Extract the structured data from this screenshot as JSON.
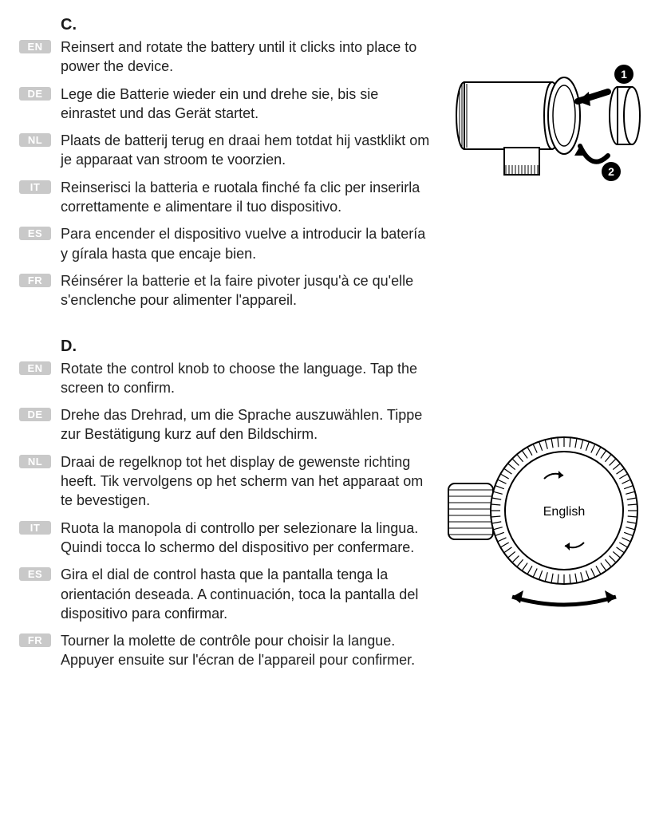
{
  "sections": {
    "c": {
      "letter": "C.",
      "blocks": [
        {
          "tag": "EN",
          "text": "Reinsert and rotate the battery until it clicks into place to power the device."
        },
        {
          "tag": "DE",
          "text": "Lege die Batterie wieder ein und drehe sie, bis sie einrastet und das Gerät startet."
        },
        {
          "tag": "NL",
          "text": "Plaats de batterij terug en draai hem totdat hij vastklikt om je apparaat van stroom te voorzien."
        },
        {
          "tag": "IT",
          "text": "Reinserisci la batteria e ruotala finché fa clic per inserirla correttamente e alimentare il tuo dispositivo."
        },
        {
          "tag": "ES",
          "text": "Para encender el dispositivo vuelve a introducir la batería y gírala hasta que encaje bien."
        },
        {
          "tag": "FR",
          "text": "Réinsérer la batterie et la faire pivoter jusqu'à ce qu'elle s'enclenche pour alimenter l'appareil."
        }
      ],
      "figure_labels": {
        "one": "1",
        "two": "2"
      }
    },
    "d": {
      "letter": "D.",
      "blocks": [
        {
          "tag": "EN",
          "text": "Rotate the control knob to choose the language. Tap the screen to confirm."
        },
        {
          "tag": "DE",
          "text": "Drehe das Drehrad, um die Sprache auszuwählen. Tippe zur Bestätigung kurz auf den Bildschirm."
        },
        {
          "tag": "NL",
          "text": "Draai de regelknop tot het display de gewenste richting heeft. Tik vervolgens op het scherm van het apparaat om te bevestigen."
        },
        {
          "tag": "IT",
          "text": "Ruota la manopola di controllo per selezionare la lingua. Quindi tocca lo schermo del dispositivo per confermare."
        },
        {
          "tag": "ES",
          "text": "Gira el dial de control hasta que la pantalla tenga la orientación deseada. A continuación, toca la pantalla del dispositivo para confirmar."
        },
        {
          "tag": "FR",
          "text": "Tourner la molette de contrôle pour choisir la langue. Appuyer ensuite sur l'écran de l'appareil pour confirmer."
        }
      ],
      "figure_labels": {
        "screen": "English"
      }
    }
  },
  "style": {
    "tag_bg": "#c9c9c9",
    "tag_fg": "#ffffff",
    "text_color": "#222222",
    "stroke": "#000000",
    "badge_bg": "#000000",
    "badge_fg": "#ffffff"
  }
}
